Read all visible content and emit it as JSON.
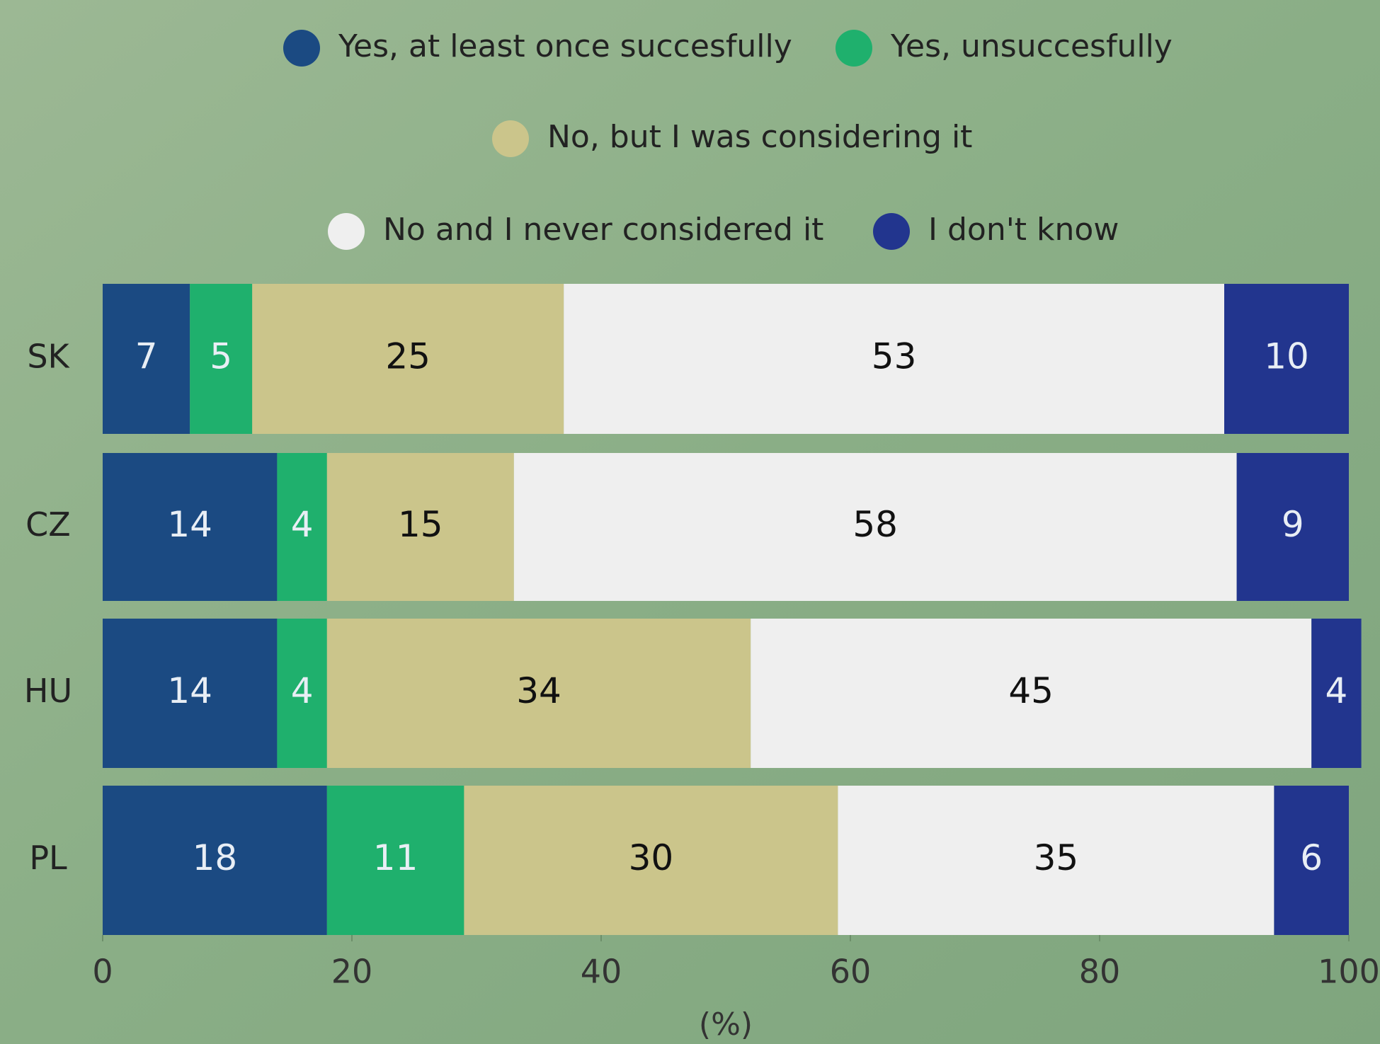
{
  "chart_data": {
    "type": "stacked-bar-horizontal",
    "categories": [
      "SK",
      "CZ",
      "HU",
      "PL"
    ],
    "series": [
      {
        "name": "Yes, at least once succesfully",
        "color": "#1b4a82",
        "values": [
          7,
          14,
          14,
          18
        ]
      },
      {
        "name": "Yes, unsuccesfully",
        "color": "#1fb06d",
        "values": [
          5,
          4,
          4,
          11
        ]
      },
      {
        "name": "No, but I was considering it",
        "color": "#cbc58b",
        "values": [
          25,
          15,
          34,
          30
        ]
      },
      {
        "name": "No and I never considered it",
        "color": "#efefef",
        "values": [
          53,
          58,
          45,
          35
        ]
      },
      {
        "name": "I don't know",
        "color": "#22358e",
        "values": [
          10,
          9,
          4,
          6
        ]
      }
    ],
    "xlim": [
      0,
      100
    ],
    "xticks": [
      0,
      20,
      40,
      60,
      80,
      100
    ],
    "xlabel": "(%)"
  }
}
